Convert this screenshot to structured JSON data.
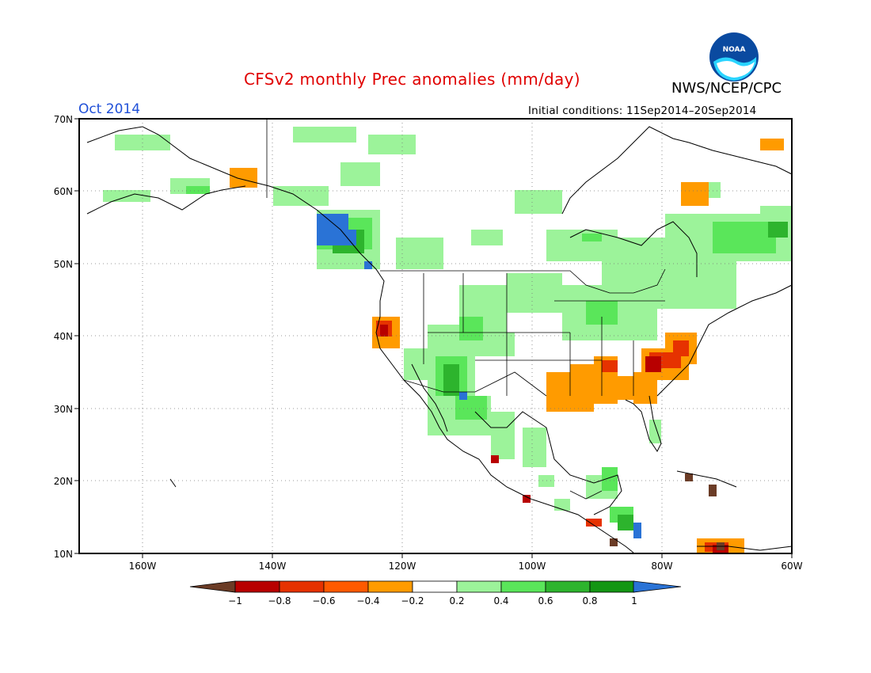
{
  "header": {
    "title": "CFSv2 monthly Prec anomalies (mm/day)",
    "period": "Oct 2014",
    "initial_conditions": "Initial conditions: 11Sep2014–20Sep2014",
    "agency": "NWS/NCEP/CPC",
    "logo_text": "NOAA"
  },
  "map": {
    "lat_labels": [
      "70N",
      "60N",
      "50N",
      "40N",
      "30N",
      "20N",
      "10N"
    ],
    "lon_labels": [
      "160W",
      "140W",
      "120W",
      "100W",
      "80W",
      "60W"
    ]
  },
  "legend": {
    "tick_labels": [
      "−1",
      "−0.8",
      "−0.6",
      "−0.4",
      "−0.2",
      "0.2",
      "0.4",
      "0.6",
      "0.8",
      "1"
    ],
    "colors": [
      "#6b3c26",
      "#b80000",
      "#e63200",
      "#ff5a00",
      "#ff9b00",
      "#ffffff",
      "#9cf39a",
      "#5ae65a",
      "#2db42d",
      "#149614",
      "#2a73d6"
    ]
  },
  "colors": {
    "dry_strong": "#b80000",
    "dry_moderate": "#e63200",
    "dry_weak": "#ff9b00",
    "wet_weak": "#9cf39a",
    "wet_moderate": "#5ae65a",
    "wet_strong": "#2db42d",
    "wet_very_strong": "#149614",
    "wet_extreme": "#2a73d6"
  }
}
